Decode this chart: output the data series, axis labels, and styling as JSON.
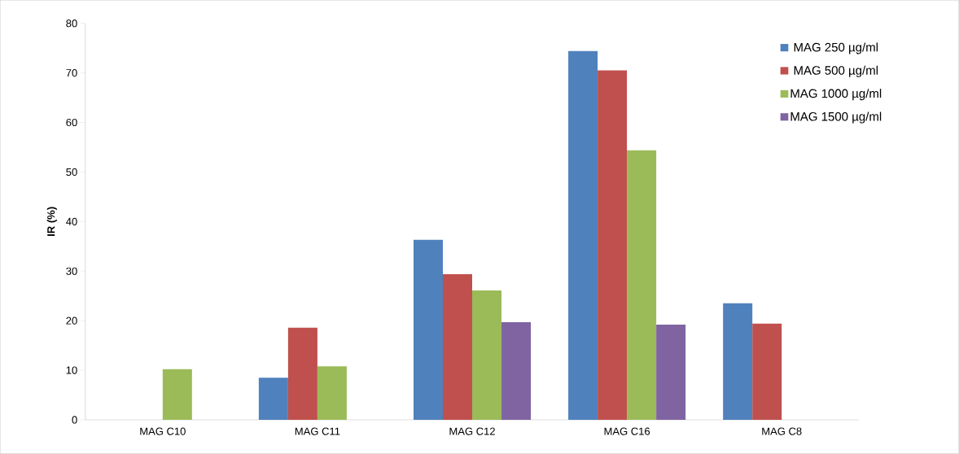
{
  "chart_data": {
    "type": "bar",
    "ylabel": "IR (%)",
    "categories": [
      "MAG C10",
      "MAG C11",
      "MAG C12",
      "MAG C16",
      "MAG C8"
    ],
    "series": [
      {
        "name": "MAG 250 µg/ml",
        "color": "#4f81bd",
        "values": [
          null,
          8.5,
          36.3,
          74.4,
          23.5
        ]
      },
      {
        "name": "MAG 500 µg/ml",
        "color": "#c0504d",
        "values": [
          null,
          18.6,
          29.4,
          70.5,
          19.4
        ]
      },
      {
        "name": "MAG 1000 µg/ml",
        "color": "#9bbb59",
        "values": [
          10.2,
          10.8,
          26.1,
          54.4,
          null
        ]
      },
      {
        "name": "MAG 1500 µg/ml",
        "color": "#8064a2",
        "values": [
          null,
          null,
          19.7,
          19.2,
          null
        ]
      }
    ],
    "ylim": [
      0,
      80
    ],
    "yticks": [
      0,
      10,
      20,
      30,
      40,
      50,
      60,
      70,
      80
    ],
    "grid": false,
    "legend": "top right"
  }
}
